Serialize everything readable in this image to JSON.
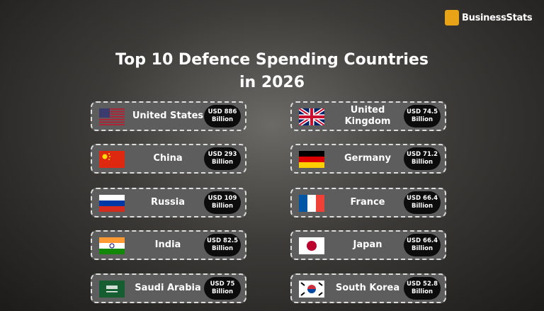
{
  "logo": "BusinessStats",
  "title": {
    "line1": "Top 10 Defence Spending Countries",
    "line2": "in 2026"
  },
  "items": [
    {
      "country": "United States",
      "amount": "USD 886",
      "unit": "Billion"
    },
    {
      "country": "China",
      "amount": "USD 293",
      "unit": "Billion"
    },
    {
      "country": "Russia",
      "amount": "USD 109",
      "unit": "Billion"
    },
    {
      "country": "India",
      "amount": "USD 82.5",
      "unit": "Billion"
    },
    {
      "country": "Saudi Arabia",
      "amount": "USD 75",
      "unit": "Billion"
    },
    {
      "country": "United Kingdom",
      "amount": "USD 74.5",
      "unit": "Billion"
    },
    {
      "country": "Germany",
      "amount": "USD 71.2",
      "unit": "Billion"
    },
    {
      "country": "France",
      "amount": "USD 66.4",
      "unit": "Billion"
    },
    {
      "country": "Japan",
      "amount": "USD 66.4",
      "unit": "Billion"
    },
    {
      "country": "South Korea",
      "amount": "USD 52.8",
      "unit": "Billion"
    }
  ]
}
